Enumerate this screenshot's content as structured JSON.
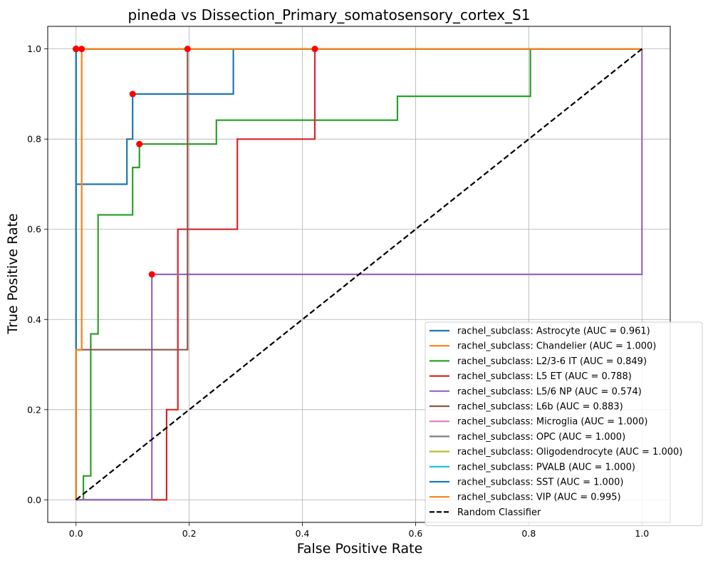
{
  "chart_data": {
    "type": "line",
    "title": "pineda vs Dissection_Primary_somatosensory_cortex_S1",
    "xlabel": "False Positive Rate",
    "ylabel": "True Positive Rate",
    "xlim": [
      -0.05,
      1.05
    ],
    "ylim": [
      -0.05,
      1.05
    ],
    "xticks": [
      0.0,
      0.2,
      0.4,
      0.6,
      0.8,
      1.0
    ],
    "yticks": [
      0.0,
      0.2,
      0.4,
      0.6,
      0.8,
      1.0
    ],
    "xtick_labels": [
      "0.0",
      "0.2",
      "0.4",
      "0.6",
      "0.8",
      "1.0"
    ],
    "ytick_labels": [
      "0.0",
      "0.2",
      "0.4",
      "0.6",
      "0.8",
      "1.0"
    ],
    "grid": true,
    "legend_position": "lower right",
    "series": [
      {
        "name": "rachel_subclass: Astrocyte (AUC = 0.961)",
        "color": "#1f77b4",
        "x": [
          0,
          0,
          0,
          0.09,
          0.09,
          0.1,
          0.1,
          0.278,
          0.278,
          1.0
        ],
        "y": [
          0,
          0.7,
          0.7,
          0.7,
          0.8,
          0.8,
          0.9,
          0.9,
          1.0,
          1.0
        ]
      },
      {
        "name": "rachel_subclass: Chandelier (AUC = 1.000)",
        "color": "#ff7f0e",
        "x": [
          0,
          0,
          0,
          1.0
        ],
        "y": [
          0,
          1.0,
          1.0,
          1.0
        ]
      },
      {
        "name": "rachel_subclass: L2/3-6 IT (AUC = 0.849)",
        "color": "#2ca02c",
        "x": [
          0,
          0.013,
          0.013,
          0.026,
          0.026,
          0.039,
          0.039,
          0.1,
          0.1,
          0.112,
          0.112,
          0.248,
          0.248,
          0.568,
          0.568,
          0.803,
          0.803,
          1.0
        ],
        "y": [
          0,
          0,
          0.053,
          0.053,
          0.368,
          0.368,
          0.632,
          0.632,
          0.737,
          0.737,
          0.789,
          0.789,
          0.842,
          0.842,
          0.895,
          0.895,
          1.0,
          1.0
        ]
      },
      {
        "name": "rachel_subclass: L5 ET (AUC = 0.788)",
        "color": "#d62728",
        "x": [
          0,
          0.16,
          0.16,
          0.18,
          0.18,
          0.285,
          0.285,
          0.422,
          0.422,
          1.0
        ],
        "y": [
          0,
          0,
          0.2,
          0.2,
          0.6,
          0.6,
          0.8,
          0.8,
          1.0,
          1.0
        ]
      },
      {
        "name": "rachel_subclass: L5/6 NP (AUC = 0.574)",
        "color": "#9467bd",
        "x": [
          0,
          0.134,
          0.134,
          1.0,
          1.0
        ],
        "y": [
          0,
          0,
          0.5,
          0.5,
          1.0
        ]
      },
      {
        "name": "rachel_subclass: L6b (AUC = 0.883)",
        "color": "#8c564b",
        "x": [
          0,
          0,
          0.197,
          0.197,
          1.0
        ],
        "y": [
          0,
          0.333,
          0.333,
          1.0,
          1.0
        ]
      },
      {
        "name": "rachel_subclass: Microglia (AUC = 1.000)",
        "color": "#e377c2",
        "x": [
          0,
          0,
          1.0
        ],
        "y": [
          0,
          1.0,
          1.0
        ]
      },
      {
        "name": "rachel_subclass: OPC (AUC = 1.000)",
        "color": "#7f7f7f",
        "x": [
          0,
          0,
          1.0
        ],
        "y": [
          0,
          1.0,
          1.0
        ]
      },
      {
        "name": "rachel_subclass: Oligodendrocyte (AUC = 1.000)",
        "color": "#bcbd22",
        "x": [
          0,
          0,
          1.0
        ],
        "y": [
          0,
          1.0,
          1.0
        ]
      },
      {
        "name": "rachel_subclass: PVALB (AUC = 1.000)",
        "color": "#17becf",
        "x": [
          0,
          0,
          1.0
        ],
        "y": [
          0,
          1.0,
          1.0
        ]
      },
      {
        "name": "rachel_subclass: SST (AUC = 1.000)",
        "color": "#1f77b4",
        "x": [
          0,
          0,
          1.0
        ],
        "y": [
          0,
          1.0,
          1.0
        ]
      },
      {
        "name": "rachel_subclass: VIP (AUC = 0.995)",
        "color": "#ff7f0e",
        "x": [
          0,
          0,
          0.01,
          0.01,
          1.0
        ],
        "y": [
          0,
          0.333,
          0.333,
          1.0,
          1.0
        ]
      },
      {
        "name": "Random Classifier",
        "color": "#000000",
        "dashed": true,
        "x": [
          0,
          1.0
        ],
        "y": [
          0,
          1.0
        ]
      }
    ],
    "optimal_points": {
      "color": "#ff0000",
      "x": [
        0.0,
        0.1,
        0.112,
        0.422,
        0.134,
        0.197,
        0.0,
        0.0,
        0.0,
        0.0,
        0.0,
        0.01
      ],
      "y": [
        1.0,
        0.9,
        0.789,
        1.0,
        0.5,
        1.0,
        1.0,
        1.0,
        1.0,
        1.0,
        1.0,
        1.0
      ]
    }
  }
}
